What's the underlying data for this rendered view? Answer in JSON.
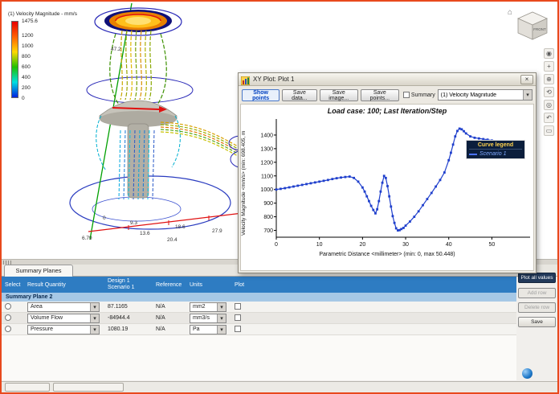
{
  "icons": {
    "close": "×",
    "home": "⌂",
    "dropdown_arrow": "▾"
  },
  "viewport": {
    "legend": {
      "title": "(1) Velocity Magnitude - mm/s",
      "ticks": [
        "1475.6",
        "1200",
        "1000",
        "800",
        "600",
        "400",
        "200",
        "0"
      ],
      "tick_values": [
        1475.6,
        1200,
        1000,
        800,
        600,
        400,
        200,
        0
      ],
      "max": 1475.6,
      "colors": [
        "#e80000",
        "#ff6000",
        "#ffd800",
        "#20c000",
        "#00e0e0",
        "#0020e0"
      ]
    },
    "axis_labels": [
      "47.2",
      "0",
      "9.3",
      "18.6",
      "27.9",
      "6.79",
      "13.6",
      "20.4"
    ],
    "view_cube": {
      "front_label": "FRONT"
    }
  },
  "right_toolbar": {
    "icons": [
      {
        "name": "steering-wheel-icon",
        "glyph": "◉"
      },
      {
        "name": "pan-icon",
        "glyph": "+"
      },
      {
        "name": "zoom-icon",
        "glyph": "⊕"
      },
      {
        "name": "orbit-icon",
        "glyph": "⟲"
      },
      {
        "name": "look-at-icon",
        "glyph": "◎"
      },
      {
        "name": "previous-view-icon",
        "glyph": "↶"
      },
      {
        "name": "window-zoom-icon",
        "glyph": "▭"
      }
    ]
  },
  "plot_window": {
    "title": "XY Plot: Plot 1",
    "toolbar": {
      "show_points": "Show points",
      "save_data": "Save data...",
      "save_image": "Save image...",
      "save_points": "Save points...",
      "summary_label": "Summary",
      "quantity_dropdown": "(1) Velocity Magnitude"
    },
    "plot": {
      "title": "Load case: 100; Last Iteration/Step",
      "ylabel": "Velocity Magnitude <mm/s> (min: 698.405, m",
      "xlabel": "Parametric Distance <millimeter> (min: 0, max 50.448)",
      "legend_title": "Curve legend",
      "legend_series": "Scenario 1"
    }
  },
  "chart_data": {
    "type": "line",
    "title": "Load case: 100; Last Iteration/Step",
    "xlabel": "Parametric Distance <millimeter> (min: 0, max 50.448)",
    "ylabel": "Velocity Magnitude <mm/s>",
    "marker": "square",
    "color": "#1f3fcc",
    "legend_position": "top-right",
    "grid": false,
    "xticks": [
      0,
      10,
      20,
      30,
      40,
      50
    ],
    "yticks": [
      700,
      800,
      900,
      1000,
      1100,
      1200,
      1300,
      1400
    ],
    "xlim": [
      0,
      57
    ],
    "ylim": [
      650,
      1500
    ],
    "series": [
      {
        "name": "Scenario 1",
        "x": [
          0,
          1,
          2,
          3,
          4,
          5,
          6,
          7,
          8,
          9,
          10,
          11,
          12,
          13,
          14,
          15,
          16,
          17,
          18,
          19,
          20,
          20.5,
          21,
          21.5,
          22,
          22.5,
          23,
          23.4,
          23.8,
          24.2,
          24.6,
          25,
          25.4,
          25.8,
          26.2,
          26.6,
          27,
          27.4,
          27.8,
          28.2,
          28.6,
          29,
          29.5,
          30,
          31,
          32,
          33,
          34,
          35,
          36,
          37,
          38,
          39,
          40,
          40.5,
          41,
          41.5,
          42,
          42.5,
          43,
          43.5,
          44,
          45,
          46,
          47,
          48,
          49,
          50
        ],
        "y": [
          1000,
          1005,
          1010,
          1016,
          1022,
          1028,
          1034,
          1040,
          1046,
          1052,
          1058,
          1064,
          1070,
          1077,
          1083,
          1088,
          1092,
          1095,
          1085,
          1058,
          1015,
          985,
          950,
          915,
          880,
          850,
          825,
          855,
          915,
          985,
          1050,
          1100,
          1085,
          1025,
          950,
          875,
          805,
          755,
          715,
          700,
          702,
          710,
          718,
          735,
          765,
          800,
          840,
          885,
          930,
          975,
          1022,
          1070,
          1125,
          1215,
          1270,
          1330,
          1390,
          1430,
          1447,
          1442,
          1428,
          1412,
          1390,
          1380,
          1375,
          1370,
          1366,
          1360
        ]
      }
    ]
  },
  "summary_panel": {
    "tab": "Summary Planes",
    "headers": {
      "select": "Select",
      "result_quantity": "Result Quantity",
      "design": "Design 1",
      "scenario": "Scenario 1",
      "reference": "Reference",
      "units": "Units",
      "plot": "Plot"
    },
    "group_label": "Summary Plane 2",
    "rows": [
      {
        "quantity": "Area",
        "value": "87.1165",
        "reference": "N/A",
        "units": "mm2"
      },
      {
        "quantity": "Volume Flow",
        "value": "-84944.4",
        "reference": "N/A",
        "units": "mm3/s"
      },
      {
        "quantity": "Pressure",
        "value": "1080.19",
        "reference": "N/A",
        "units": "Pa"
      }
    ],
    "buttons": {
      "plot_all": "Plot all values",
      "add_row": "Add row",
      "delete_row": "Delete row",
      "save": "Save"
    }
  }
}
